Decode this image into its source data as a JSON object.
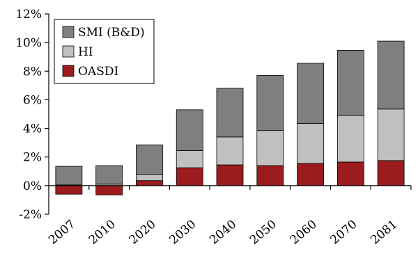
{
  "chart_data": {
    "type": "bar",
    "stacked": true,
    "title": "",
    "xlabel": "",
    "ylabel": "",
    "categories": [
      "2007",
      "2010",
      "2020",
      "2030",
      "2040",
      "2050",
      "2060",
      "2070",
      "2081"
    ],
    "series": [
      {
        "name": "OASDI",
        "color": "#9b1b1e",
        "values": [
          -0.6,
          -0.65,
          0.35,
          1.25,
          1.45,
          1.4,
          1.55,
          1.65,
          1.75
        ]
      },
      {
        "name": "HI",
        "color": "#c0c0c0",
        "values": [
          0.05,
          0.1,
          0.45,
          1.2,
          1.95,
          2.45,
          2.8,
          3.25,
          3.6
        ]
      },
      {
        "name": "SMI (B&D)",
        "color": "#7f7f7f",
        "values": [
          1.3,
          1.3,
          2.05,
          2.85,
          3.4,
          3.85,
          4.2,
          4.55,
          4.75
        ]
      }
    ],
    "ylim": [
      -2,
      12
    ],
    "yticks": [
      -2,
      0,
      2,
      4,
      6,
      8,
      10,
      12
    ],
    "ytick_labels": [
      "-2%",
      "0%",
      "2%",
      "4%",
      "6%",
      "8%",
      "10%",
      "12%"
    ],
    "legend": {
      "placement": "top-left",
      "order": [
        "SMI (B&D)",
        "HI",
        "OASDI"
      ]
    },
    "grid": false
  }
}
